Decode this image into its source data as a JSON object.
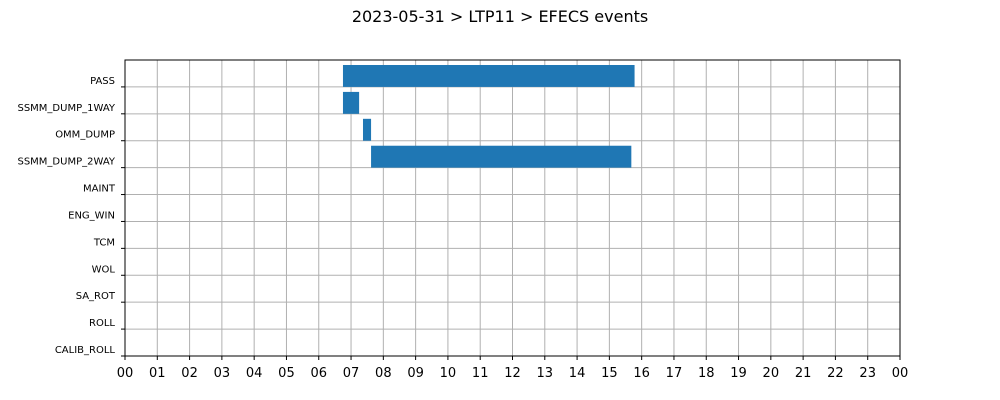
{
  "chart_data": {
    "type": "gantt",
    "title": "2023-05-31 > LTP11 > EFECS events",
    "xlim": [
      0,
      24
    ],
    "x_ticks": [
      "00",
      "01",
      "02",
      "03",
      "04",
      "05",
      "06",
      "07",
      "08",
      "09",
      "10",
      "11",
      "12",
      "13",
      "14",
      "15",
      "16",
      "17",
      "18",
      "19",
      "20",
      "21",
      "22",
      "23",
      "00"
    ],
    "categories": [
      "PASS",
      "SSMM_DUMP_1WAY",
      "OMM_DUMP",
      "SSMM_DUMP_2WAY",
      "MAINT",
      "ENG_WIN",
      "TCM",
      "WOL",
      "SA_ROT",
      "ROLL",
      "CALIB_ROLL"
    ],
    "events": [
      {
        "category": "PASS",
        "start": 6.75,
        "end": 15.78
      },
      {
        "category": "SSMM_DUMP_1WAY",
        "start": 6.75,
        "end": 7.25
      },
      {
        "category": "OMM_DUMP",
        "start": 7.37,
        "end": 7.62
      },
      {
        "category": "SSMM_DUMP_2WAY",
        "start": 7.62,
        "end": 15.68
      }
    ],
    "bar_color": "#1f77b4",
    "grid": true,
    "legend": "none"
  }
}
